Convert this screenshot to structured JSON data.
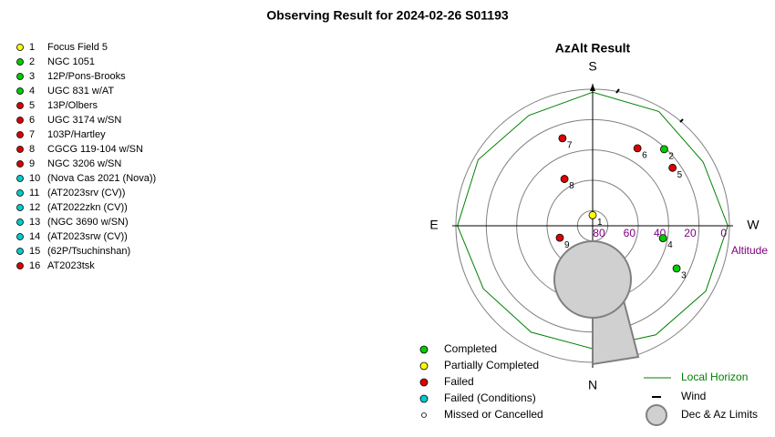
{
  "title": "Observing Result for 2024-02-26 S01193",
  "chart_data": {
    "type": "polar",
    "title": "AzAlt Result",
    "directions": {
      "S": "S",
      "W": "W",
      "N": "N",
      "E": "E"
    },
    "rlim": [
      90,
      0
    ],
    "rticks": [
      80,
      60,
      40,
      20,
      0
    ],
    "r_label": "Altitude",
    "grid": true,
    "points": [
      {
        "number": 1,
        "name": "Focus Field 5",
        "color": "#ffff00",
        "az": 180,
        "alt": 83
      },
      {
        "number": 2,
        "name": "NGC 1051",
        "color": "#00cc00",
        "az": 223,
        "alt": 21
      },
      {
        "number": 3,
        "name": "12P/Pons-Brooks",
        "color": "#00cc00",
        "az": 297,
        "alt": 28
      },
      {
        "number": 4,
        "name": "UGC 831 w/AT",
        "color": "#00cc00",
        "az": 280,
        "alt": 43
      },
      {
        "number": 5,
        "name": "13P/Olbers",
        "color": "#dd0000",
        "az": 234,
        "alt": 25
      },
      {
        "number": 6,
        "name": "UGC 3174 w/SN",
        "color": "#dd0000",
        "az": 210,
        "alt": 31
      },
      {
        "number": 7,
        "name": "103P/Hartley",
        "color": "#dd0000",
        "az": 161,
        "alt": 29
      },
      {
        "number": 8,
        "name": "CGCG 119-104 w/SN",
        "color": "#dd0000",
        "az": 149,
        "alt": 54
      },
      {
        "number": 9,
        "name": "NGC 3206 w/SN",
        "color": "#dd0000",
        "az": 70,
        "alt": 67
      },
      {
        "number": 10,
        "name": "(Nova Cas 2021 (Nova))",
        "color": "#00cccc",
        "az": null,
        "alt": null
      },
      {
        "number": 11,
        "name": "(AT2023srv (CV))",
        "color": "#00cccc",
        "az": null,
        "alt": null
      },
      {
        "number": 12,
        "name": "(AT2022zkn (CV))",
        "color": "#00cccc",
        "az": null,
        "alt": null
      },
      {
        "number": 13,
        "name": "(NGC 3690 w/SN)",
        "color": "#00cccc",
        "az": null,
        "alt": null
      },
      {
        "number": 14,
        "name": "(AT2023srw (CV))",
        "color": "#00cccc",
        "az": null,
        "alt": null
      },
      {
        "number": 15,
        "name": "(62P/Tsuchinshan)",
        "color": "#00cccc",
        "az": null,
        "alt": null
      },
      {
        "number": 16,
        "name": "AT2023tsk",
        "color": "#dd0000",
        "az": null,
        "alt": null
      }
    ],
    "horizon": {
      "name": "Local Horizon",
      "color": "#008000",
      "az": [
        0,
        30,
        60,
        90,
        120,
        150,
        180,
        210,
        240,
        270,
        300,
        330
      ],
      "alt": [
        9,
        9,
        7,
        1,
        3,
        6,
        2,
        3,
        6,
        1,
        4,
        7
      ]
    },
    "legend": [
      {
        "label": "Completed",
        "color": "#00cc00"
      },
      {
        "label": "Partially Completed",
        "color": "#ffff00"
      },
      {
        "label": "Failed",
        "color": "#dd0000"
      },
      {
        "label": "Failed (Conditions)",
        "color": "#00cccc"
      },
      {
        "label": "Missed or Cancelled",
        "color": "#ffffff"
      }
    ],
    "wind_label": "Wind",
    "limits_label": "Dec & Az Limits"
  }
}
